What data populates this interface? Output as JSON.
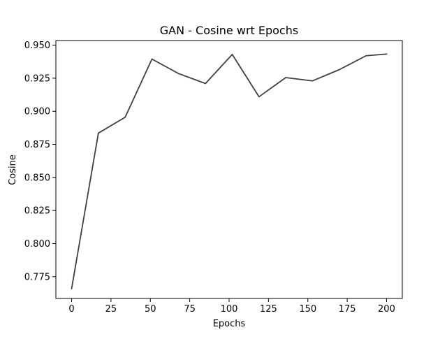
{
  "chart_data": {
    "type": "line",
    "title": "GAN - Cosine wrt Epochs",
    "xlabel": "Epochs",
    "ylabel": "Cosine",
    "xlim": [
      -10,
      210
    ],
    "ylim": [
      0.7585,
      0.9535
    ],
    "x_ticks": [
      0,
      25,
      50,
      75,
      100,
      125,
      150,
      175,
      200
    ],
    "y_ticks": [
      0.775,
      0.8,
      0.825,
      0.85,
      0.875,
      0.9,
      0.925,
      0.95
    ],
    "grid": false,
    "series": [
      {
        "color": "#404040",
        "x": [
          0,
          17,
          34,
          51,
          68,
          85,
          102,
          119,
          136,
          153,
          170,
          187,
          200
        ],
        "y": [
          0.766,
          0.8835,
          0.8955,
          0.9395,
          0.9285,
          0.921,
          0.943,
          0.911,
          0.9255,
          0.923,
          0.9315,
          0.942,
          0.9433
        ]
      }
    ]
  }
}
